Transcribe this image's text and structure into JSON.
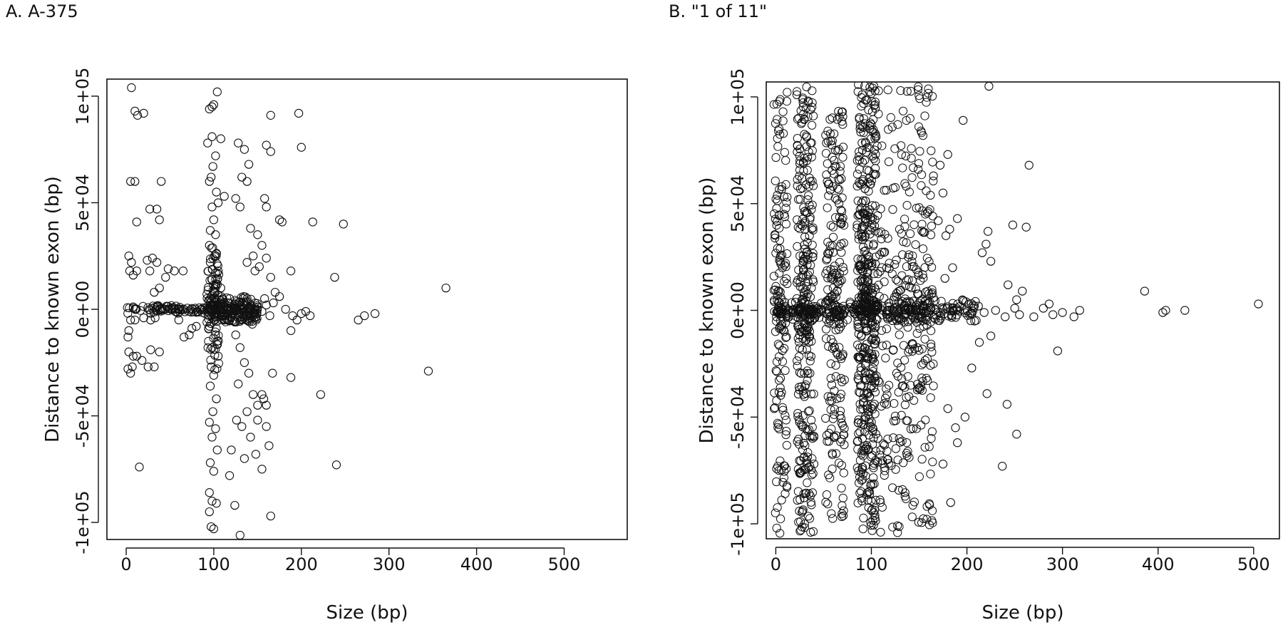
{
  "chart_data": [
    {
      "type": "scatter",
      "title": "A. A-375",
      "xlabel": "Size (bp)",
      "ylabel": "Distance to known exon (bp)",
      "xlim": [
        -22,
        572
      ],
      "ylim": [
        -108000,
        108000
      ],
      "x_ticks": [
        0,
        100,
        200,
        300,
        400,
        500
      ],
      "x_tick_labels": [
        "0",
        "100",
        "200",
        "300",
        "400",
        "500"
      ],
      "y_ticks": [
        -100000,
        -50000,
        0,
        50000,
        100000
      ],
      "y_tick_labels": [
        "-1e+05",
        "-5e+04",
        "0e+00",
        "5e+04",
        "1e+05"
      ],
      "grid": false,
      "points": [
        [
          6,
          104000
        ],
        [
          10,
          93000
        ],
        [
          13,
          91000
        ],
        [
          20,
          92000
        ],
        [
          5,
          60000
        ],
        [
          10,
          60000
        ],
        [
          12,
          41000
        ],
        [
          27,
          47000
        ],
        [
          35,
          47000
        ],
        [
          38,
          42000
        ],
        [
          40,
          60000
        ],
        [
          3,
          25000
        ],
        [
          6,
          22000
        ],
        [
          4,
          18000
        ],
        [
          8,
          16000
        ],
        [
          12,
          18000
        ],
        [
          24,
          23000
        ],
        [
          30,
          24000
        ],
        [
          27,
          18000
        ],
        [
          35,
          22000
        ],
        [
          48,
          19000
        ],
        [
          55,
          18000
        ],
        [
          65,
          18000
        ],
        [
          45,
          15000
        ],
        [
          32,
          8000
        ],
        [
          38,
          10000
        ],
        [
          3,
          -10000
        ],
        [
          2,
          -13000
        ],
        [
          5,
          -5000
        ],
        [
          10,
          -5000
        ],
        [
          20,
          -4000
        ],
        [
          28,
          -5000
        ],
        [
          33,
          -4000
        ],
        [
          60,
          -5000
        ],
        [
          66,
          -13000
        ],
        [
          75,
          -9000
        ],
        [
          80,
          -8000
        ],
        [
          72,
          -12000
        ],
        [
          3,
          -20000
        ],
        [
          8,
          -22000
        ],
        [
          12,
          -22000
        ],
        [
          18,
          -24000
        ],
        [
          25,
          -27000
        ],
        [
          32,
          -27000
        ],
        [
          38,
          -20000
        ],
        [
          28,
          -19000
        ],
        [
          2,
          -28000
        ],
        [
          5,
          -30000
        ],
        [
          7,
          -27000
        ],
        [
          15,
          -74000
        ],
        [
          95,
          94000
        ],
        [
          100,
          96000
        ],
        [
          104,
          102000
        ],
        [
          98,
          95000
        ],
        [
          93,
          78000
        ],
        [
          98,
          81000
        ],
        [
          108,
          80000
        ],
        [
          102,
          72000
        ],
        [
          99,
          67000
        ],
        [
          95,
          60000
        ],
        [
          97,
          62000
        ],
        [
          103,
          55000
        ],
        [
          98,
          48000
        ],
        [
          105,
          50000
        ],
        [
          100,
          42000
        ],
        [
          112,
          53000
        ],
        [
          96,
          37000
        ],
        [
          102,
          35000
        ],
        [
          95,
          30000
        ],
        [
          103,
          26000
        ],
        [
          96,
          22000
        ],
        [
          105,
          18000
        ],
        [
          98,
          14000
        ],
        [
          108,
          10000
        ],
        [
          101,
          8000
        ],
        [
          96,
          5000
        ],
        [
          95,
          -8000
        ],
        [
          102,
          -12000
        ],
        [
          98,
          -18000
        ],
        [
          105,
          -22000
        ],
        [
          97,
          -27000
        ],
        [
          100,
          -31000
        ],
        [
          96,
          -36000
        ],
        [
          103,
          -42000
        ],
        [
          99,
          -48000
        ],
        [
          95,
          -53000
        ],
        [
          102,
          -56000
        ],
        [
          98,
          -60000
        ],
        [
          104,
          -66000
        ],
        [
          96,
          -72000
        ],
        [
          100,
          -76000
        ],
        [
          95,
          -86000
        ],
        [
          98,
          -90000
        ],
        [
          97,
          -102000
        ],
        [
          100,
          -103000
        ],
        [
          95,
          -95000
        ],
        [
          103,
          -91000
        ],
        [
          128,
          78000
        ],
        [
          135,
          75000
        ],
        [
          140,
          68000
        ],
        [
          132,
          62000
        ],
        [
          138,
          60000
        ],
        [
          125,
          52000
        ],
        [
          130,
          48000
        ],
        [
          142,
          38000
        ],
        [
          150,
          35000
        ],
        [
          155,
          30000
        ],
        [
          145,
          25000
        ],
        [
          138,
          22000
        ],
        [
          147,
          18000
        ],
        [
          152,
          20000
        ],
        [
          160,
          24000
        ],
        [
          165,
          15000
        ],
        [
          170,
          8000
        ],
        [
          158,
          5000
        ],
        [
          175,
          6000
        ],
        [
          165,
          91000
        ],
        [
          160,
          77000
        ],
        [
          165,
          74000
        ],
        [
          158,
          52000
        ],
        [
          160,
          48000
        ],
        [
          175,
          42000
        ],
        [
          178,
          41000
        ],
        [
          197,
          92000
        ],
        [
          200,
          76000
        ],
        [
          213,
          41000
        ],
        [
          248,
          40000
        ],
        [
          188,
          18000
        ],
        [
          238,
          15000
        ],
        [
          365,
          10000
        ],
        [
          182,
          0
        ],
        [
          190,
          -3000
        ],
        [
          195,
          -5000
        ],
        [
          200,
          -2000
        ],
        [
          205,
          -1000
        ],
        [
          210,
          -3000
        ],
        [
          188,
          -10000
        ],
        [
          265,
          -5000
        ],
        [
          272,
          -3000
        ],
        [
          284,
          -2000
        ],
        [
          125,
          -12000
        ],
        [
          130,
          -18000
        ],
        [
          135,
          -25000
        ],
        [
          140,
          -30000
        ],
        [
          128,
          -35000
        ],
        [
          145,
          -40000
        ],
        [
          150,
          -45000
        ],
        [
          138,
          -48000
        ],
        [
          132,
          -55000
        ],
        [
          126,
          -52000
        ],
        [
          155,
          -40000
        ],
        [
          160,
          -45000
        ],
        [
          142,
          -60000
        ],
        [
          135,
          -70000
        ],
        [
          120,
          -66000
        ],
        [
          118,
          -78000
        ],
        [
          124,
          -92000
        ],
        [
          130,
          -106000
        ],
        [
          165,
          -97000
        ],
        [
          163,
          -64000
        ],
        [
          148,
          -68000
        ],
        [
          155,
          -75000
        ],
        [
          157,
          -42000
        ],
        [
          150,
          -52000
        ],
        [
          160,
          -55000
        ],
        [
          167,
          -30000
        ],
        [
          188,
          -32000
        ],
        [
          222,
          -40000
        ],
        [
          240,
          -73000
        ],
        [
          345,
          -29000
        ],
        [
          110,
          2000
        ],
        [
          115,
          -2000
        ],
        [
          120,
          1000
        ],
        [
          125,
          -1000
        ],
        [
          130,
          2000
        ],
        [
          135,
          -1000
        ],
        [
          140,
          1000
        ],
        [
          145,
          -2000
        ],
        [
          150,
          1000
        ],
        [
          155,
          -1000
        ],
        [
          160,
          2000
        ],
        [
          112,
          -5000
        ],
        [
          118,
          5000
        ],
        [
          124,
          -6000
        ],
        [
          134,
          6000
        ],
        [
          144,
          -7000
        ],
        [
          164,
          -3000
        ],
        [
          168,
          3000
        ]
      ],
      "dense_points": [
        {
          "x_range": [
            0,
            90
          ],
          "y_range": [
            -2000,
            2000
          ],
          "count": 80
        },
        {
          "x_range": [
            92,
            150
          ],
          "y_range": [
            -6000,
            6000
          ],
          "count": 180
        },
        {
          "x_range": [
            92,
            106
          ],
          "y_range": [
            -30000,
            30000
          ],
          "count": 90
        }
      ]
    },
    {
      "type": "scatter",
      "title": "B. \"1 of 11\"",
      "xlabel": "Size (bp)",
      "ylabel": "Distance to known exon (bp)",
      "xlim": [
        -10,
        527
      ],
      "ylim": [
        -107000,
        107000
      ],
      "x_ticks": [
        0,
        100,
        200,
        300,
        400,
        500
      ],
      "x_tick_labels": [
        "0",
        "100",
        "200",
        "300",
        "400",
        "500"
      ],
      "y_ticks": [
        -100000,
        -50000,
        0,
        50000,
        100000
      ],
      "y_tick_labels": [
        "-1e+05",
        "-5e+04",
        "0e+00",
        "5e+04",
        "1e+05"
      ],
      "grid": false,
      "points": [
        [
          223,
          105000
        ],
        [
          196,
          89000
        ],
        [
          265,
          68000
        ],
        [
          248,
          40000
        ],
        [
          262,
          39000
        ],
        [
          222,
          37000
        ],
        [
          220,
          31000
        ],
        [
          216,
          27000
        ],
        [
          225,
          23000
        ],
        [
          243,
          12000
        ],
        [
          252,
          5000
        ],
        [
          258,
          9000
        ],
        [
          212,
          2000
        ],
        [
          218,
          -1000
        ],
        [
          230,
          0
        ],
        [
          240,
          -3000
        ],
        [
          250,
          1000
        ],
        [
          255,
          -2000
        ],
        [
          270,
          -3000
        ],
        [
          280,
          1000
        ],
        [
          286,
          3000
        ],
        [
          290,
          -2000
        ],
        [
          300,
          -1000
        ],
        [
          312,
          -3000
        ],
        [
          318,
          0
        ],
        [
          386,
          9000
        ],
        [
          405,
          -1000
        ],
        [
          408,
          0
        ],
        [
          428,
          0
        ],
        [
          505,
          3000
        ],
        [
          213,
          -15000
        ],
        [
          225,
          -12000
        ],
        [
          295,
          -19000
        ],
        [
          205,
          -27000
        ],
        [
          221,
          -39000
        ],
        [
          242,
          -44000
        ],
        [
          252,
          -58000
        ],
        [
          237,
          -73000
        ],
        [
          190,
          -62000
        ],
        [
          198,
          -50000
        ],
        [
          180,
          -46000
        ],
        [
          188,
          -55000
        ],
        [
          183,
          -90000
        ],
        [
          175,
          -72000
        ],
        [
          165,
          63000
        ],
        [
          172,
          68000
        ],
        [
          180,
          73000
        ],
        [
          175,
          55000
        ],
        [
          170,
          42000
        ],
        [
          190,
          43000
        ],
        [
          182,
          38000
        ],
        [
          178,
          35000
        ],
        [
          185,
          20000
        ],
        [
          177,
          15000
        ]
      ],
      "dense_points": [
        {
          "x_range": [
            -2,
            12
          ],
          "y_range": [
            -105000,
            104000
          ],
          "count": 160
        },
        {
          "x_range": [
            22,
            40
          ],
          "y_range": [
            -104000,
            105000
          ],
          "count": 320
        },
        {
          "x_range": [
            52,
            72
          ],
          "y_range": [
            -98000,
            95000
          ],
          "count": 220
        },
        {
          "x_range": [
            85,
            105
          ],
          "y_range": [
            -106000,
            106000
          ],
          "count": 480
        },
        {
          "x_range": [
            105,
            165
          ],
          "y_range": [
            -105000,
            105000
          ],
          "count": 360
        },
        {
          "x_range": [
            0,
            210
          ],
          "y_range": [
            -5000,
            5000
          ],
          "count": 260
        }
      ]
    }
  ]
}
